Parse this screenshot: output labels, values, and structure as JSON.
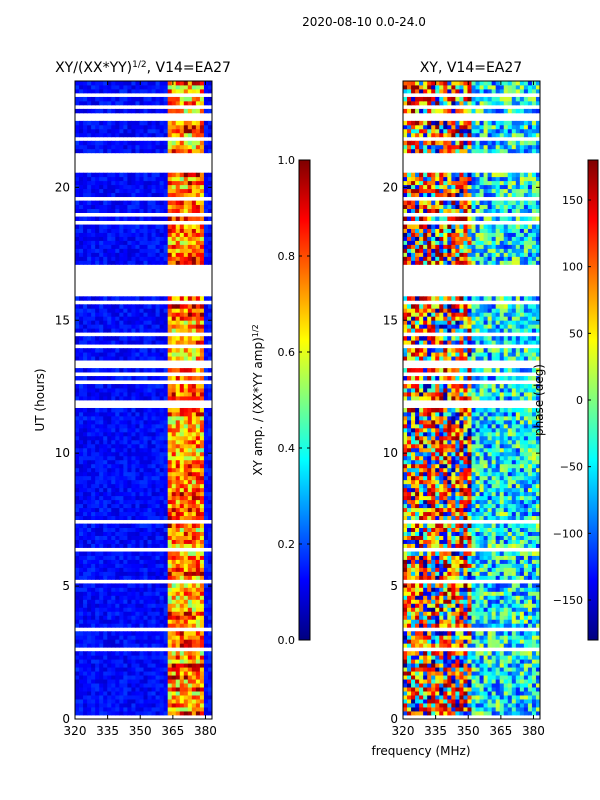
{
  "figure": {
    "suptitle": "2020-08-10 0.0-24.0",
    "shared_xlabel": "frequency (MHz)"
  },
  "chart_data": [
    {
      "type": "heatmap",
      "title_main": "XY/(XX*YY)",
      "title_sup": "1/2",
      "title_tail": ", V14=EA27",
      "xlabel": "frequency (MHz)",
      "ylabel": "UT (hours)",
      "xlim": [
        320,
        383
      ],
      "ylim": [
        0,
        24
      ],
      "xticks": [
        320,
        335,
        350,
        365,
        380
      ],
      "yticks": [
        0,
        5,
        10,
        15,
        20
      ],
      "colormap": "jet",
      "colorbar": {
        "label_main": "XY amp. / (XX*YY amp)",
        "label_sup": "1/2",
        "vmin": 0.0,
        "vmax": 1.0,
        "ticks": [
          "0.0",
          "0.2",
          "0.4",
          "0.6",
          "0.8",
          "1.0"
        ]
      },
      "flagged_time_ranges_hours": [
        [
          16.0,
          17.0
        ],
        [
          20.6,
          21.3
        ],
        [
          11.65,
          11.95
        ]
      ],
      "bright_band_mhz": [
        362,
        380
      ]
    },
    {
      "type": "heatmap",
      "title_main": "XY, V14=EA27",
      "title_sup": "",
      "title_tail": "",
      "xlabel": "frequency (MHz)",
      "ylabel": "",
      "xlim": [
        320,
        383
      ],
      "ylim": [
        0,
        24
      ],
      "xticks": [
        320,
        335,
        350,
        365,
        380
      ],
      "yticks": [
        0,
        5,
        10,
        15,
        20
      ],
      "colormap": "jet",
      "colorbar": {
        "label_main": "phase (deg)",
        "vmin": -180,
        "vmax": 180,
        "ticks": [
          "150",
          "100",
          "50",
          "0",
          "−50",
          "−100",
          "−150"
        ],
        "tick_values": [
          150,
          100,
          50,
          0,
          -50,
          -100,
          -150
        ]
      },
      "flagged_time_ranges_hours": [
        [
          16.0,
          17.0
        ],
        [
          20.6,
          21.3
        ],
        [
          11.65,
          11.95
        ]
      ]
    }
  ],
  "colors": {
    "jet": [
      "#00007f",
      "#0000ff",
      "#007fff",
      "#00ffff",
      "#7fff7f",
      "#ffff00",
      "#ff7f00",
      "#ff0000",
      "#7f0000"
    ]
  }
}
